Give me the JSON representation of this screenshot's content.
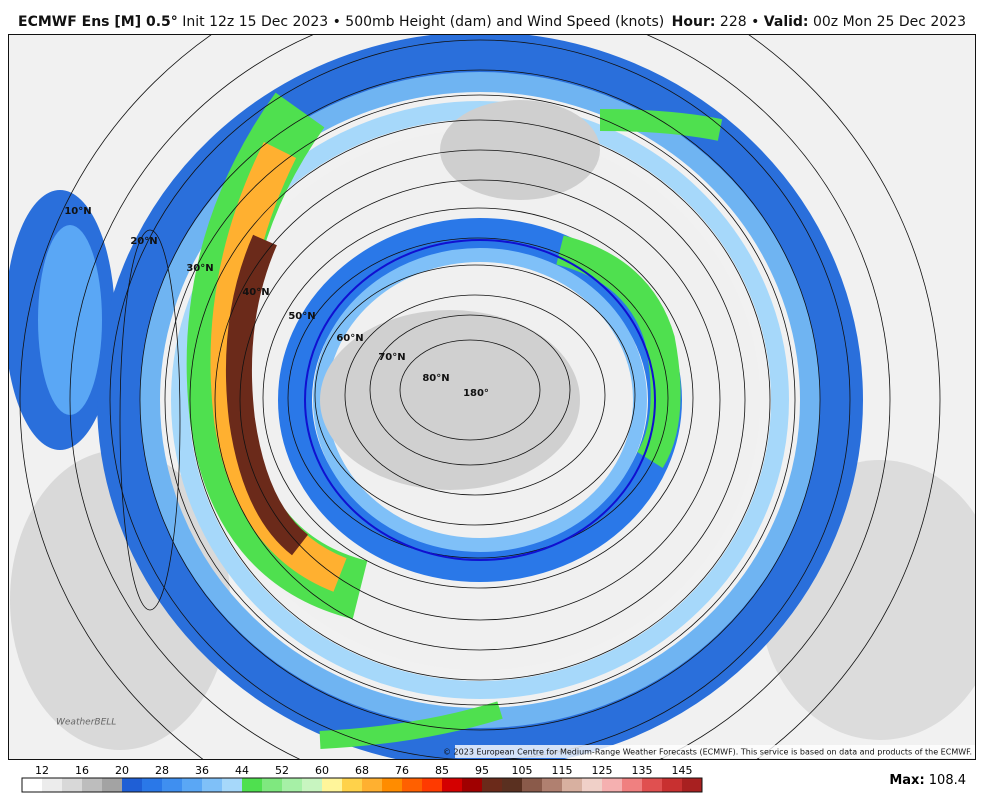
{
  "header": {
    "model": "ECMWF Ens [M] 0.5°",
    "description": "Init 12z 15 Dec 2023 • 500mb Height (dam) and Wind Speed (knots)",
    "hour_label": "Hour:",
    "hour_value": "228 •",
    "valid_label": "Valid:",
    "valid_value": "00z Mon 25 Dec 2023"
  },
  "map": {
    "latitude_labels": [
      "10°N",
      "20°N",
      "30°N",
      "40°N",
      "50°N",
      "60°N",
      "70°N",
      "80°N",
      "180°"
    ],
    "logo": "WeatherBELL",
    "copyright": "© 2023 European Centre for Medium-Range Weather Forecasts (ECMWF). This service is based on data and products of the ECMWF."
  },
  "colorbar": {
    "labels": [
      "12",
      "16",
      "20",
      "28",
      "36",
      "44",
      "52",
      "60",
      "68",
      "76",
      "85",
      "95",
      "105",
      "115",
      "125",
      "135",
      "145"
    ],
    "colors": [
      "#ffffff",
      "#ececec",
      "#d8d8d8",
      "#bdbdbd",
      "#a3a3a3",
      "#1f5fd6",
      "#2a78e8",
      "#3f8ff0",
      "#5aa7f5",
      "#7fc0f8",
      "#a6d8fa",
      "#4fe04f",
      "#7fe87f",
      "#a6f0a6",
      "#c8f5c0",
      "#fff59a",
      "#ffd24a",
      "#ffb030",
      "#ff8c00",
      "#ff6000",
      "#ff3a00",
      "#d40000",
      "#a00000",
      "#6b2a1a",
      "#5a3020",
      "#8a5a4a",
      "#b08070",
      "#d8b0a0",
      "#f0d0c8",
      "#f5b0b0",
      "#f08080",
      "#e05050",
      "#c83030",
      "#a82020"
    ]
  },
  "footer": {
    "max_label": "Max:",
    "max_value": "108.4"
  }
}
